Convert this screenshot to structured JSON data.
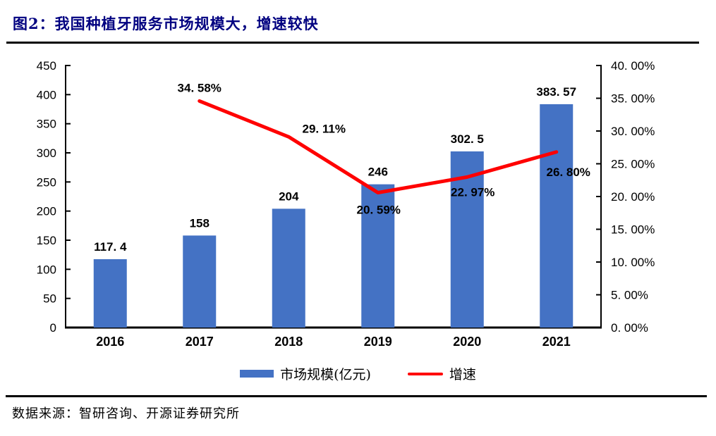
{
  "title": "图2：我国种植牙服务市场规模大，增速较快",
  "source": "数据来源：智研咨询、开源证券研究所",
  "colors": {
    "bar": "#4472C4",
    "line": "#FF0000",
    "title": "#000080",
    "axis": "#000000",
    "label": "#000000",
    "rule": "#000000"
  },
  "legend": [
    {
      "label": "市场规模(亿元)",
      "swatch": "bar",
      "color": "#4472C4"
    },
    {
      "label": "增速",
      "swatch": "line",
      "color": "#FF0000"
    }
  ],
  "chart_data": {
    "type": "bar",
    "subtype": "combo-bar-line",
    "categories": [
      "2016",
      "2017",
      "2018",
      "2019",
      "2020",
      "2021"
    ],
    "series": [
      {
        "name": "市场规模(亿元)",
        "type": "bar",
        "axis": "left",
        "categories": [
          "2016",
          "2017",
          "2018",
          "2019",
          "2020",
          "2021"
        ],
        "values": [
          117.4,
          158,
          204,
          246,
          302.5,
          383.57
        ],
        "labels": [
          "117. 4",
          "158",
          "204",
          "246",
          "302. 5",
          "383. 57"
        ],
        "color": "#4472C4"
      },
      {
        "name": "增速",
        "type": "line",
        "axis": "right",
        "categories": [
          "2017",
          "2018",
          "2019",
          "2020",
          "2021"
        ],
        "values": [
          34.58,
          29.11,
          20.59,
          22.97,
          26.8
        ],
        "labels": [
          "34. 58%",
          "29. 11%",
          "20. 59%",
          "22. 97%",
          "26. 80%"
        ],
        "color": "#FF0000"
      }
    ],
    "left_axis": {
      "min": 0,
      "max": 450,
      "step": 50,
      "ticks": [
        "450",
        "400",
        "350",
        "300",
        "250",
        "200",
        "150",
        "100",
        "50",
        "0"
      ]
    },
    "right_axis": {
      "min": 0,
      "max": 40,
      "step": 5,
      "ticks": [
        "40. 00%",
        "35. 00%",
        "30. 00%",
        "25. 00%",
        "20. 00%",
        "15. 00%",
        "10. 00%",
        "5. 00%",
        "0. 00%"
      ]
    },
    "grid": false,
    "legend_position": "bottom"
  }
}
